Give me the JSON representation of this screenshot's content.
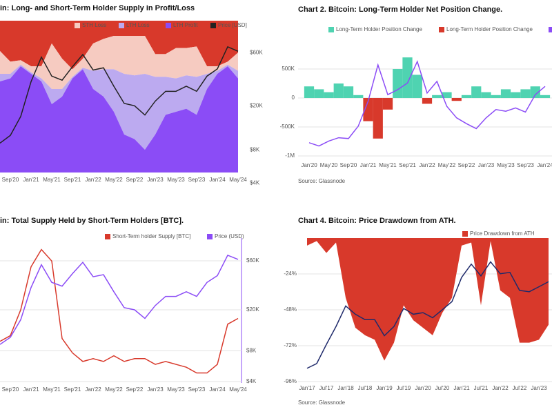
{
  "chart_data": [
    {
      "type": "area",
      "stacked": true,
      "title": "in: Long- and Short-Term Holder Supply in Profit/Loss",
      "categories": [
        null,
        "Sep'20",
        null,
        "Jan'21",
        null,
        "May'21",
        null,
        "Sep'21",
        null,
        "Jan'22",
        null,
        "May'22",
        null,
        "Sep'22",
        null,
        "Jan'23",
        null,
        "May'23",
        null,
        "Sep'23",
        null,
        "Jan'24",
        null,
        "May'24"
      ],
      "ylim": [
        0,
        100
      ],
      "y2lim": [
        5000,
        117000
      ],
      "y2log": true,
      "y2ticks": [
        {
          "value": 60000,
          "label": "$60K"
        },
        {
          "value": 20000,
          "label": "$20K"
        },
        {
          "value": 8000,
          "label": "$8K"
        },
        {
          "value": 4000,
          "label": "$4K"
        }
      ],
      "grid": false,
      "series": [
        {
          "name": "STH Profit",
          "color": "#d8392b",
          "values": [
            20,
            27,
            26,
            30,
            30,
            15,
            25,
            32,
            25,
            15,
            12,
            10,
            10,
            10,
            10,
            22,
            22,
            18,
            18,
            17,
            30,
            30,
            27,
            21
          ]
        },
        {
          "name": "STH Loss",
          "color": "#f6cbc1",
          "values": [
            15,
            8,
            3,
            4,
            8,
            30,
            20,
            5,
            6,
            18,
            20,
            22,
            25,
            26,
            25,
            15,
            15,
            20,
            18,
            20,
            5,
            3,
            2,
            12
          ]
        },
        {
          "name": "LTH Loss",
          "color": "#bcaaf0",
          "values": [
            5,
            3,
            1,
            1,
            2,
            10,
            5,
            1,
            1,
            12,
            18,
            28,
            40,
            42,
            50,
            38,
            25,
            22,
            22,
            25,
            10,
            2,
            1,
            5
          ]
        },
        {
          "name": "LTH Profit",
          "color": "#8b4cf6",
          "values": [
            60,
            62,
            70,
            65,
            60,
            45,
            50,
            62,
            68,
            55,
            50,
            40,
            25,
            22,
            15,
            25,
            38,
            40,
            42,
            38,
            55,
            65,
            70,
            62
          ]
        },
        {
          "name": "Price [USD]",
          "color": "#222222",
          "type": "line",
          "axis": "y2",
          "values": [
            9200,
            10800,
            16000,
            33000,
            55000,
            37000,
            34000,
            45000,
            58000,
            42000,
            44000,
            30000,
            21000,
            20000,
            16500,
            22000,
            27000,
            27000,
            30000,
            27000,
            37000,
            43000,
            68000,
            62000
          ]
        }
      ]
    },
    {
      "type": "bar",
      "title": "Chart 2. Bitcoin: Long-Term Holder Net Position Change.",
      "categories": [
        "Jan'20",
        null,
        "May'20",
        null,
        "Sep'20",
        null,
        "Jan'21",
        null,
        "May'21",
        null,
        "Sep'21",
        null,
        "Jan'22",
        null,
        "May'22",
        null,
        "Sep'22",
        null,
        "Jan'23",
        null,
        "May'23",
        null,
        "Sep'23",
        null,
        "Jan'24"
      ],
      "ylim": [
        -1000000,
        1000000
      ],
      "yticks": [
        {
          "value": 500000,
          "label": "500K"
        },
        0,
        {
          "value": -500000,
          "label": "-500K"
        },
        {
          "value": -1000000,
          "label": "-1M"
        }
      ],
      "y2lim": [
        0,
        70000
      ],
      "grid": true,
      "source": "Source: Glassnode",
      "series": [
        {
          "name": "Long-Term Holder Position Change",
          "color": "#4fd3b1",
          "values": [
            200000,
            150000,
            100000,
            250000,
            200000,
            50000,
            null,
            null,
            null,
            500000,
            700000,
            400000,
            null,
            50000,
            100000,
            null,
            50000,
            200000,
            100000,
            50000,
            150000,
            100000,
            150000,
            200000,
            50000
          ]
        },
        {
          "name": "Long-Term Holder Position Change",
          "color": "#d8392b",
          "values": [
            null,
            null,
            null,
            null,
            null,
            null,
            -400000,
            -700000,
            -200000,
            null,
            null,
            null,
            -100000,
            null,
            null,
            -50000,
            null,
            null,
            null,
            null,
            null,
            null,
            null,
            null,
            null
          ]
        },
        {
          "color": "#8b4cf6",
          "type": "line",
          "axis": "y2",
          "values": [
            8000,
            6000,
            9000,
            11000,
            10500,
            18000,
            33000,
            55000,
            37000,
            40000,
            44000,
            57000,
            38000,
            45000,
            30000,
            23000,
            19500,
            16500,
            23000,
            28000,
            27000,
            29000,
            26500,
            37000,
            42000
          ]
        }
      ]
    },
    {
      "type": "line",
      "title": "in: Total Supply Held by Short-Term Holders [BTC].",
      "categories": [
        null,
        "Sep'20",
        null,
        "Jan'21",
        null,
        "May'21",
        null,
        "Sep'21",
        null,
        "Jan'22",
        null,
        "May'22",
        null,
        "Sep'22",
        null,
        "Jan'23",
        null,
        "May'23",
        null,
        "Sep'23",
        null,
        "Jan'24",
        null,
        "May'24"
      ],
      "ylim": [
        2000000,
        7000000
      ],
      "y2lim": [
        4000,
        100000
      ],
      "y2log": true,
      "y2ticks": [
        {
          "value": 60000,
          "label": "$60K"
        },
        {
          "value": 20000,
          "label": "$20K"
        },
        {
          "value": 8000,
          "label": "$8K"
        },
        {
          "value": 4000,
          "label": "$4K"
        }
      ],
      "grid": true,
      "series": [
        {
          "name": "Short-Term holder Supply [BTC]",
          "color": "#d8392b",
          "values": [
            3400000,
            3600000,
            4500000,
            6000000,
            6600000,
            6200000,
            3500000,
            3000000,
            2700000,
            2800000,
            2700000,
            2900000,
            2700000,
            2800000,
            2800000,
            2600000,
            2700000,
            2600000,
            2500000,
            2300000,
            2300000,
            2600000,
            4000000,
            4200000
          ]
        },
        {
          "name": "Price (USD)",
          "color": "#8b4cf6",
          "axis": "y2",
          "values": [
            9200,
            10800,
            16000,
            33000,
            55000,
            37000,
            34000,
            45000,
            58000,
            42000,
            44000,
            30000,
            21000,
            20000,
            16500,
            22000,
            27000,
            27000,
            30000,
            27000,
            37000,
            43000,
            68000,
            62000
          ]
        }
      ]
    },
    {
      "type": "area",
      "title": "Chart 4. Bitcoin: Price Drawdown from ATH.",
      "categories": [
        "Jan'17",
        null,
        "Jul'17",
        null,
        "Jan'18",
        null,
        "Jul'18",
        null,
        "Jan'19",
        null,
        "Jul'19",
        null,
        "Jan'20",
        null,
        "Jul'20",
        null,
        "Jan'21",
        null,
        "Jul'21",
        null,
        "Jan'22",
        null,
        "Jul'22",
        null,
        "Jan'23",
        null
      ],
      "ylim": [
        -96,
        0
      ],
      "yticks": [
        {
          "value": -24,
          "label": "-24%"
        },
        {
          "value": -48,
          "label": "-48%"
        },
        {
          "value": -72,
          "label": "-72%"
        },
        {
          "value": -96,
          "label": "-96%"
        }
      ],
      "y2lim": [
        600,
        150000
      ],
      "y2log": true,
      "grid": true,
      "source": "Source: Glassnode",
      "series": [
        {
          "name": "Price Drawdown from ATH",
          "color": "#d8392b",
          "values": [
            -5,
            -2,
            -10,
            -3,
            -40,
            -60,
            -65,
            -68,
            -82,
            -70,
            -45,
            -55,
            -60,
            -65,
            -50,
            -40,
            -5,
            -3,
            -45,
            -2,
            -35,
            -40,
            -70,
            -70,
            -68,
            -58
          ]
        },
        {
          "color": "#1f2a6b",
          "type": "line",
          "axis": "y2",
          "values": [
            1000,
            1200,
            2500,
            5000,
            11000,
            8000,
            6500,
            6500,
            3500,
            5000,
            10000,
            8000,
            8500,
            7000,
            9500,
            13000,
            33000,
            55000,
            35000,
            60000,
            38000,
            40000,
            20000,
            19000,
            23000,
            28000
          ]
        }
      ]
    }
  ]
}
